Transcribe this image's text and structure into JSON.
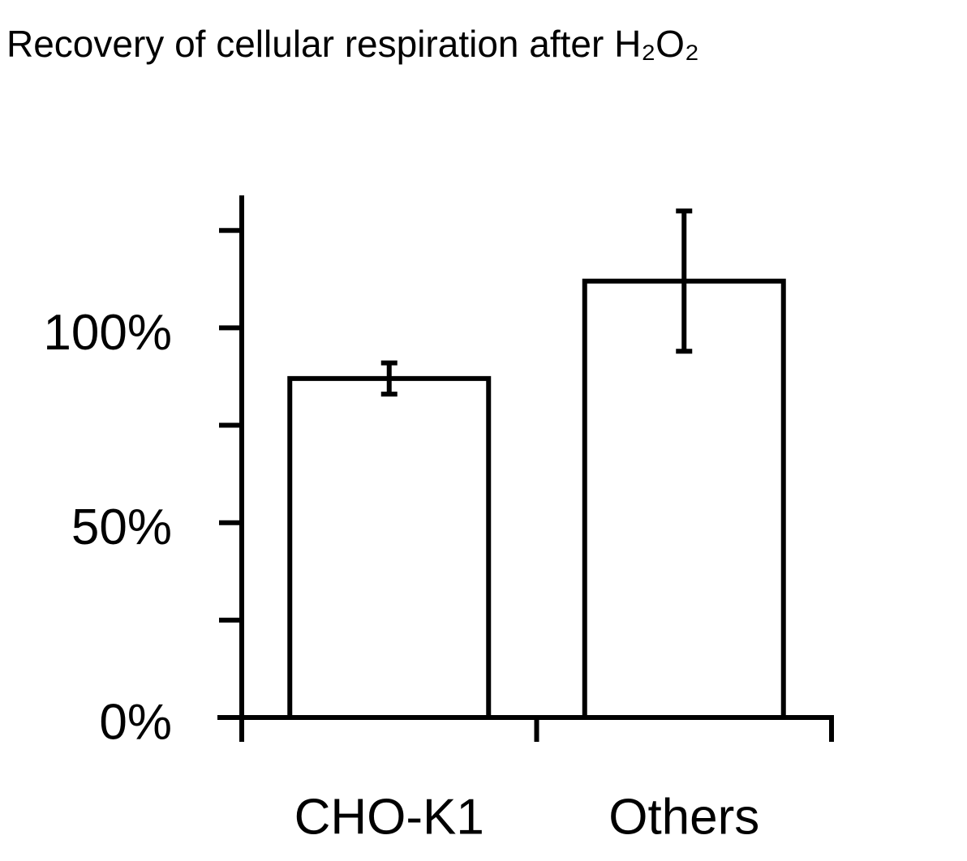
{
  "chart_data": {
    "type": "bar",
    "title": "Recovery of cellular respiration  after H₂O₂",
    "categories": [
      "CHO-K1",
      "Others"
    ],
    "values": [
      87,
      112
    ],
    "errors": [
      4,
      18
    ],
    "color": "#ffffff",
    "ylim": [
      0,
      134
    ],
    "yticks": [
      {
        "value": 0,
        "label": "0%"
      },
      {
        "value": 50,
        "label": "50%"
      },
      {
        "value": 100,
        "label": "100%"
      }
    ],
    "minor_yticks": [
      25,
      75,
      125
    ],
    "grid": false
  }
}
